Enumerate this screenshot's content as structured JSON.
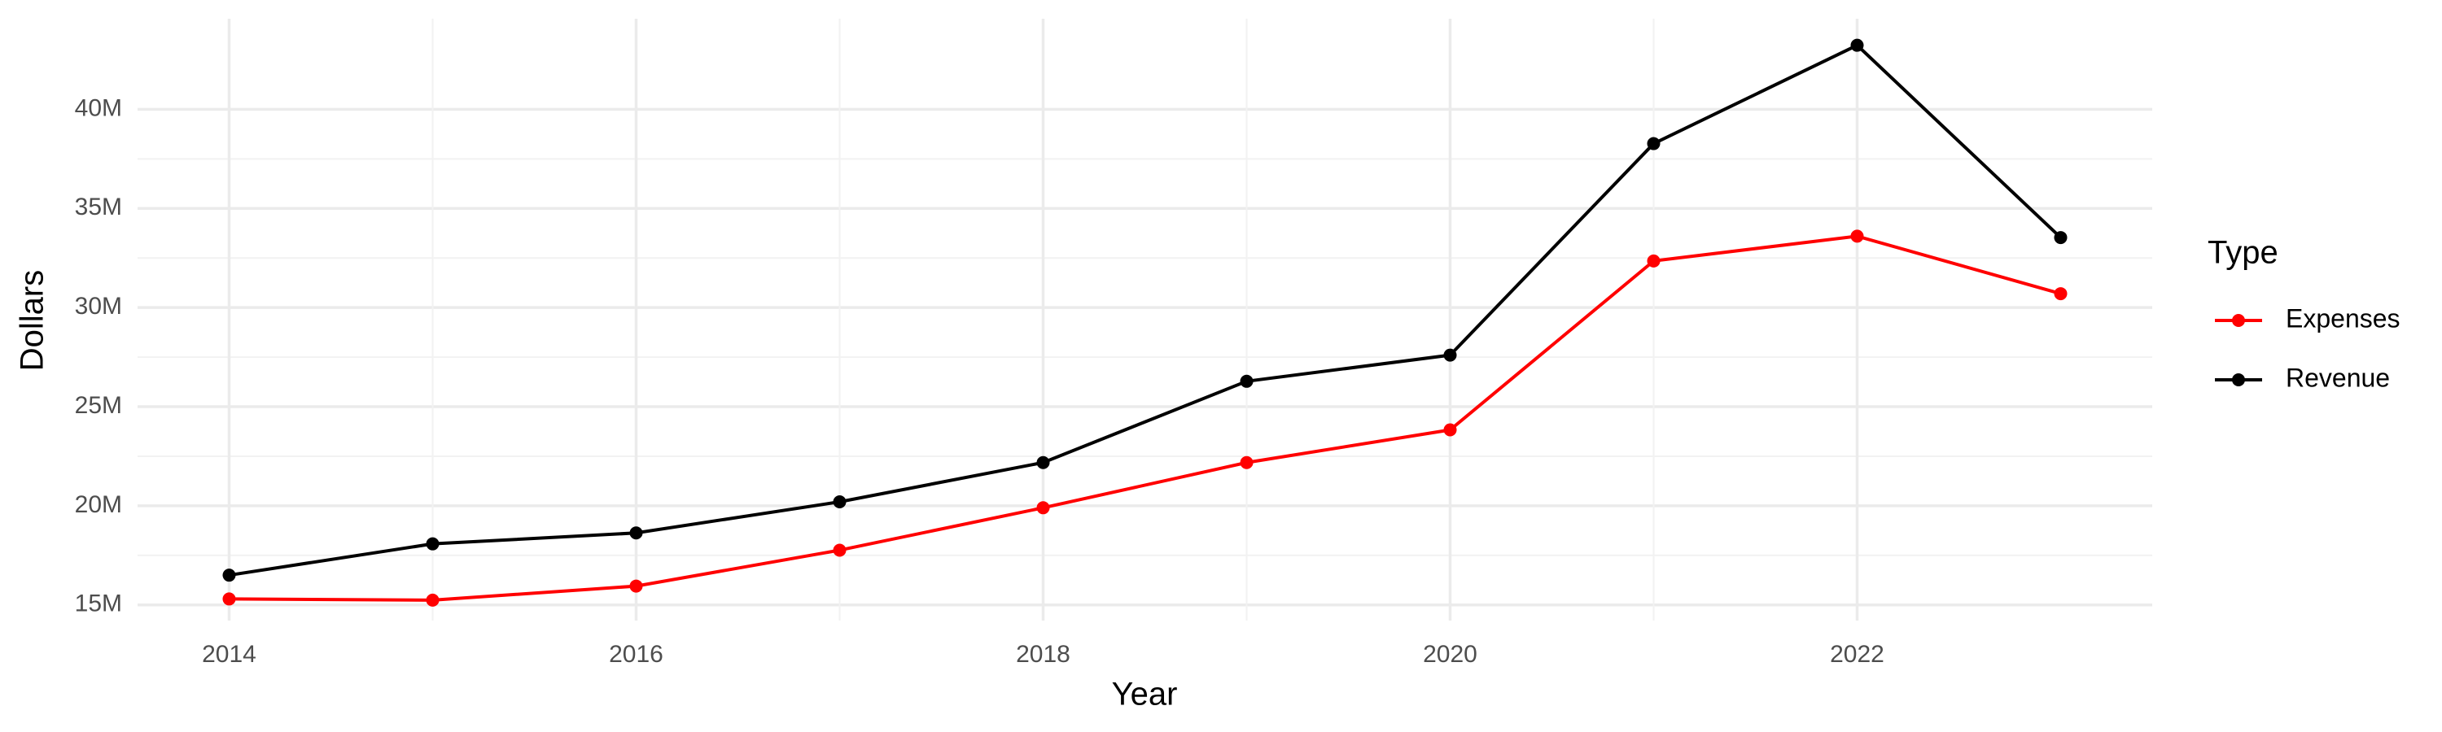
{
  "chart_data": {
    "type": "line",
    "x_label": "Year",
    "y_label": "Dollars",
    "x": [
      2014,
      2015,
      2016,
      2017,
      2018,
      2019,
      2020,
      2021,
      2022,
      2023
    ],
    "series": [
      {
        "name": "Expenses",
        "color": "#ff0000",
        "values": [
          15300000,
          15240000,
          15950000,
          17760000,
          19900000,
          22180000,
          23830000,
          32350000,
          33600000,
          30700000
        ]
      },
      {
        "name": "Revenue",
        "color": "#000000",
        "values": [
          16500000,
          18080000,
          18630000,
          20200000,
          22180000,
          26280000,
          27600000,
          38270000,
          43230000,
          33530000
        ]
      }
    ],
    "xlim": [
      2013.55,
      2023.45
    ],
    "xticks": [
      2014,
      2016,
      2018,
      2020,
      2022
    ],
    "ylim": [
      14210000,
      44570000
    ],
    "yticks": [
      {
        "value": 15000000,
        "label": "15M"
      },
      {
        "value": 20000000,
        "label": "20M"
      },
      {
        "value": 25000000,
        "label": "25M"
      },
      {
        "value": 30000000,
        "label": "30M"
      },
      {
        "value": 35000000,
        "label": "35M"
      },
      {
        "value": 40000000,
        "label": "40M"
      }
    ],
    "grid": true,
    "legend_title": "Type",
    "legend_position": "right"
  }
}
